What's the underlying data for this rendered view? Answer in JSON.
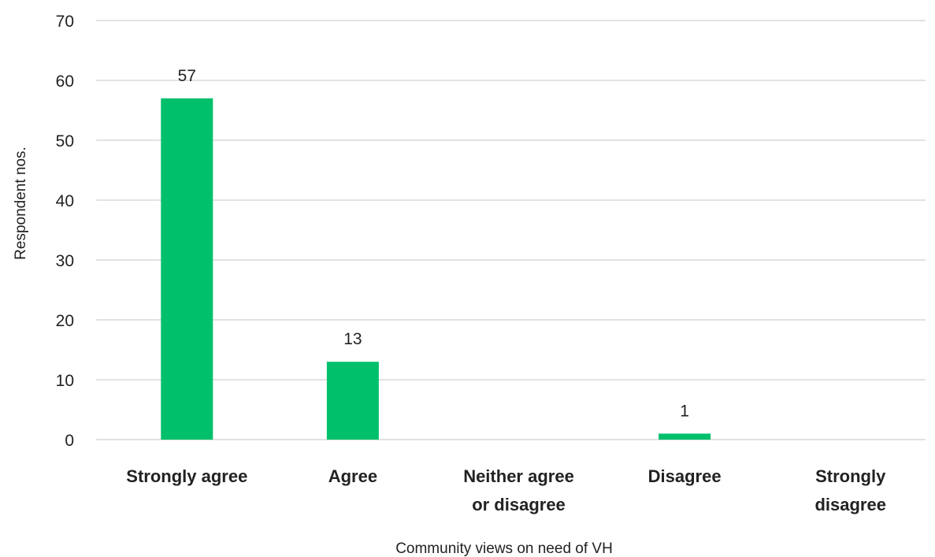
{
  "chart_data": {
    "type": "bar",
    "categories": [
      [
        "Strongly agree"
      ],
      [
        "Agree"
      ],
      [
        "Neither agree",
        "or disagree"
      ],
      [
        "Disagree"
      ],
      [
        "Strongly",
        "disagree"
      ]
    ],
    "values": [
      57,
      13,
      0,
      1,
      0
    ],
    "data_labels": [
      "57",
      "13",
      "",
      "1",
      ""
    ],
    "xlabel": "Community views on need of VH",
    "ylabel": "Respondent nos.",
    "ylim": [
      0,
      70
    ],
    "yticks": [
      0,
      10,
      20,
      30,
      40,
      50,
      60,
      70
    ],
    "grid": true,
    "bar_color": "#00c06b",
    "grid_color": "#d9d9d9"
  }
}
